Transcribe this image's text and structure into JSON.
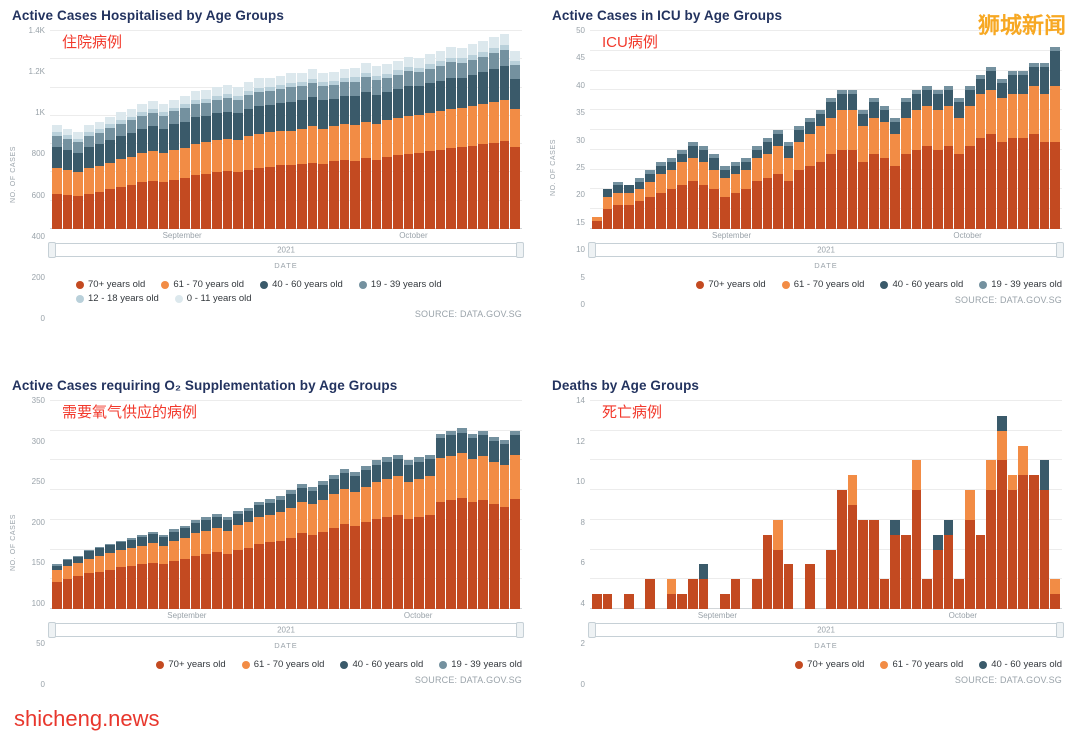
{
  "watermark_top": "狮城新闻",
  "watermark_bottom": "shicheng.news",
  "chart_data": [
    {
      "type": "bar",
      "title": "Active Cases Hospitalised by Age Groups",
      "annotation": "住院病例",
      "ylabel": "NO. OF CASES",
      "xlabel": "DATE",
      "slider_label": "2021",
      "source": "SOURCE: DATA.GOV.SG",
      "ymax": 1400,
      "yticks": [
        "0",
        "200",
        "400",
        "600",
        "800",
        "1K",
        "1.2K",
        "1.4K"
      ],
      "xticks": [
        {
          "label": "September",
          "pos": 28
        },
        {
          "label": "October",
          "pos": 77
        }
      ],
      "series": [
        {
          "name": "70+ years old",
          "color": "#c34a21",
          "values": [
            250,
            240,
            230,
            250,
            260,
            280,
            300,
            310,
            330,
            340,
            330,
            350,
            360,
            380,
            390,
            400,
            410,
            400,
            420,
            430,
            440,
            450,
            450,
            460,
            470,
            460,
            480,
            490,
            480,
            500,
            490,
            510,
            520,
            530,
            540,
            550,
            560,
            570,
            580,
            590,
            600,
            610,
            620,
            580
          ]
        },
        {
          "name": "61 - 70 years old",
          "color": "#f28c45",
          "values": [
            180,
            175,
            170,
            180,
            185,
            190,
            195,
            200,
            205,
            210,
            205,
            210,
            215,
            220,
            225,
            230,
            225,
            230,
            235,
            240,
            245,
            240,
            245,
            250,
            255,
            250,
            245,
            250,
            255,
            260,
            255,
            260,
            265,
            270,
            265,
            270,
            275,
            280,
            275,
            280,
            285,
            290,
            295,
            270
          ]
        },
        {
          "name": "40 - 60 years old",
          "color": "#3a5a6a",
          "values": [
            150,
            145,
            140,
            150,
            155,
            160,
            165,
            170,
            175,
            180,
            175,
            180,
            185,
            190,
            185,
            190,
            195,
            190,
            195,
            200,
            195,
            200,
            205,
            200,
            205,
            200,
            195,
            200,
            205,
            210,
            205,
            200,
            205,
            210,
            205,
            210,
            215,
            220,
            215,
            220,
            225,
            230,
            235,
            210
          ]
        },
        {
          "name": "19 - 39 years old",
          "color": "#74919f",
          "values": [
            80,
            78,
            76,
            80,
            82,
            84,
            86,
            88,
            90,
            92,
            90,
            92,
            94,
            96,
            94,
            96,
            98,
            96,
            98,
            100,
            98,
            100,
            102,
            100,
            102,
            100,
            98,
            100,
            102,
            104,
            102,
            100,
            102,
            104,
            102,
            104,
            106,
            108,
            106,
            108,
            110,
            112,
            114,
            100
          ]
        },
        {
          "name": "12 - 18 years old",
          "color": "#b9d0da",
          "values": [
            25,
            24,
            23,
            25,
            26,
            27,
            26,
            25,
            27,
            28,
            27,
            26,
            28,
            29,
            28,
            27,
            29,
            28,
            29,
            30,
            29,
            28,
            30,
            29,
            30,
            29,
            28,
            29,
            30,
            31,
            30,
            29,
            30,
            31,
            30,
            31,
            32,
            33,
            32,
            33,
            34,
            35,
            36,
            30
          ]
        },
        {
          "name": "0 - 11 years old",
          "color": "#dce8ed",
          "values": [
            50,
            48,
            46,
            50,
            52,
            54,
            56,
            55,
            57,
            58,
            56,
            58,
            60,
            62,
            60,
            62,
            64,
            62,
            64,
            66,
            64,
            66,
            68,
            66,
            68,
            66,
            64,
            66,
            68,
            70,
            68,
            66,
            68,
            70,
            68,
            70,
            72,
            74,
            72,
            74,
            76,
            78,
            80,
            70
          ]
        }
      ]
    },
    {
      "type": "bar",
      "title": "Active Cases in ICU by Age Groups",
      "annotation": "ICU病例",
      "ylabel": "NO. OF CASES",
      "xlabel": "DATE",
      "slider_label": "2021",
      "source": "SOURCE: DATA.GOV.SG",
      "ymax": 50,
      "yticks": [
        "0",
        "5",
        "10",
        "15",
        "20",
        "25",
        "30",
        "35",
        "40",
        "45",
        "50"
      ],
      "xticks": [
        {
          "label": "September",
          "pos": 30
        },
        {
          "label": "October",
          "pos": 80
        }
      ],
      "series": [
        {
          "name": "70+ years old",
          "color": "#c34a21",
          "values": [
            2,
            5,
            6,
            6,
            7,
            8,
            9,
            10,
            11,
            12,
            11,
            10,
            8,
            9,
            10,
            12,
            13,
            14,
            12,
            15,
            16,
            17,
            19,
            20,
            20,
            17,
            19,
            18,
            16,
            19,
            20,
            21,
            20,
            21,
            19,
            21,
            23,
            24,
            22,
            23,
            23,
            24,
            22,
            22
          ]
        },
        {
          "name": "61 - 70 years old",
          "color": "#f28c45",
          "values": [
            1,
            3,
            3,
            3,
            3,
            4,
            5,
            5,
            6,
            6,
            6,
            5,
            5,
            5,
            5,
            6,
            6,
            7,
            6,
            7,
            8,
            9,
            9,
            10,
            10,
            9,
            9,
            9,
            8,
            9,
            10,
            10,
            10,
            10,
            9,
            10,
            11,
            11,
            11,
            11,
            11,
            12,
            12,
            14
          ]
        },
        {
          "name": "40 - 60 years old",
          "color": "#3a5a6a",
          "values": [
            0,
            2,
            2,
            2,
            2,
            2,
            2,
            2,
            2,
            3,
            3,
            3,
            2,
            2,
            2,
            2,
            3,
            3,
            3,
            3,
            3,
            3,
            4,
            4,
            4,
            3,
            4,
            3,
            3,
            4,
            4,
            4,
            4,
            4,
            4,
            4,
            4,
            5,
            4,
            5,
            5,
            5,
            7,
            9
          ]
        },
        {
          "name": "19 - 39 years old",
          "color": "#74919f",
          "values": [
            0,
            0,
            1,
            0,
            1,
            1,
            1,
            1,
            1,
            1,
            1,
            1,
            1,
            1,
            1,
            1,
            1,
            1,
            1,
            1,
            1,
            1,
            1,
            1,
            1,
            1,
            1,
            1,
            1,
            1,
            1,
            1,
            1,
            1,
            1,
            1,
            1,
            1,
            1,
            1,
            1,
            1,
            1,
            1
          ]
        }
      ]
    },
    {
      "type": "bar",
      "title": "Active Cases requiring O₂ Supplementation by Age Groups",
      "annotation": "需要氧气供应的病例",
      "ylabel": "NO. OF CASES",
      "xlabel": "DATE",
      "slider_label": "2021",
      "source": "SOURCE: DATA.GOV.SG",
      "ymax": 350,
      "yticks": [
        "0",
        "50",
        "100",
        "150",
        "200",
        "250",
        "300",
        "350"
      ],
      "xticks": [
        {
          "label": "September",
          "pos": 29
        },
        {
          "label": "October",
          "pos": 78
        }
      ],
      "series": [
        {
          "name": "70+ years old",
          "color": "#c34a21",
          "values": [
            45,
            50,
            55,
            60,
            63,
            66,
            70,
            72,
            75,
            78,
            75,
            80,
            85,
            90,
            93,
            96,
            93,
            100,
            103,
            110,
            112,
            115,
            120,
            128,
            125,
            130,
            137,
            143,
            140,
            146,
            152,
            155,
            158,
            152,
            155,
            158,
            180,
            183,
            186,
            180,
            183,
            176,
            172,
            185
          ]
        },
        {
          "name": "61 - 70 years old",
          "color": "#f28c45",
          "values": [
            20,
            22,
            22,
            25,
            26,
            28,
            29,
            30,
            31,
            33,
            31,
            34,
            35,
            38,
            39,
            40,
            39,
            41,
            43,
            45,
            46,
            48,
            50,
            52,
            51,
            54,
            56,
            59,
            57,
            60,
            62,
            64,
            65,
            62,
            64,
            65,
            74,
            75,
            76,
            73,
            75,
            72,
            71,
            75
          ]
        },
        {
          "name": "40 - 60 years old",
          "color": "#3a5a6a",
          "values": [
            8,
            10,
            10,
            12,
            13,
            13,
            13,
            14,
            15,
            15,
            15,
            16,
            16,
            17,
            18,
            19,
            18,
            19,
            19,
            20,
            21,
            21,
            24,
            24,
            23,
            25,
            26,
            27,
            27,
            28,
            29,
            29,
            30,
            29,
            29,
            30,
            33,
            34,
            35,
            34,
            34,
            34,
            34,
            32
          ]
        },
        {
          "name": "19 - 39 years old",
          "color": "#74919f",
          "values": [
            2,
            3,
            3,
            3,
            3,
            3,
            3,
            4,
            4,
            4,
            4,
            5,
            4,
            5,
            5,
            5,
            5,
            5,
            5,
            5,
            6,
            6,
            6,
            6,
            6,
            6,
            6,
            6,
            6,
            6,
            7,
            7,
            7,
            7,
            7,
            7,
            8,
            8,
            8,
            8,
            8,
            8,
            8,
            8
          ]
        }
      ]
    },
    {
      "type": "bar",
      "title": "Deaths by Age Groups",
      "annotation": "死亡病例",
      "ylabel": "",
      "xlabel": "DATE",
      "slider_label": "2021",
      "source": "SOURCE: DATA.GOV.SG",
      "ymax": 14,
      "yticks": [
        "0",
        "2",
        "4",
        "6",
        "8",
        "10",
        "12",
        "14"
      ],
      "xticks": [
        {
          "label": "September",
          "pos": 27
        },
        {
          "label": "October",
          "pos": 79
        }
      ],
      "series": [
        {
          "name": "70+ years old",
          "color": "#c34a21",
          "values": [
            1,
            1,
            0,
            1,
            0,
            2,
            0,
            1,
            1,
            2,
            2,
            0,
            1,
            2,
            0,
            2,
            5,
            4,
            3,
            0,
            3,
            0,
            4,
            8,
            7,
            6,
            6,
            2,
            5,
            5,
            8,
            2,
            4,
            5,
            2,
            6,
            5,
            8,
            10,
            8,
            9,
            9,
            8,
            1
          ]
        },
        {
          "name": "61 - 70 years old",
          "color": "#f28c45",
          "values": [
            0,
            0,
            0,
            0,
            0,
            0,
            0,
            1,
            0,
            0,
            0,
            0,
            0,
            0,
            0,
            0,
            0,
            2,
            0,
            0,
            0,
            0,
            0,
            0,
            2,
            0,
            0,
            0,
            0,
            0,
            2,
            0,
            0,
            0,
            0,
            2,
            0,
            2,
            2,
            1,
            2,
            0,
            0,
            1
          ]
        },
        {
          "name": "40 - 60 years old",
          "color": "#3a5a6a",
          "values": [
            0,
            0,
            0,
            0,
            0,
            0,
            0,
            0,
            0,
            0,
            1,
            0,
            0,
            0,
            0,
            0,
            0,
            0,
            0,
            0,
            0,
            0,
            0,
            0,
            0,
            0,
            0,
            0,
            1,
            0,
            0,
            0,
            1,
            1,
            0,
            0,
            0,
            0,
            1,
            0,
            0,
            0,
            2,
            0
          ]
        }
      ]
    }
  ]
}
